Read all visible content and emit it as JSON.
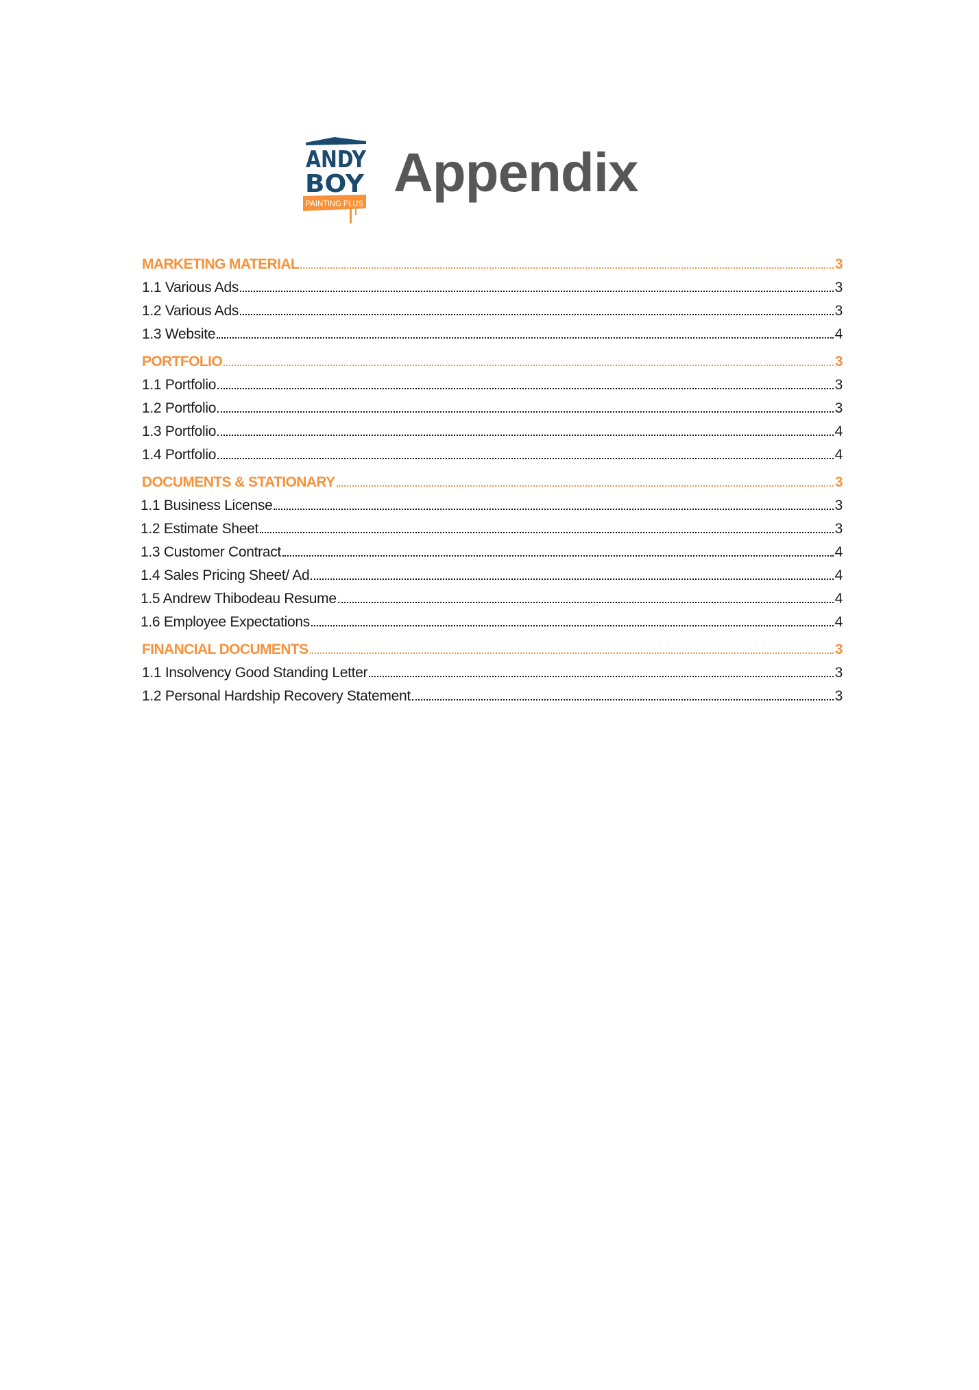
{
  "logo": {
    "line1": "ANDY",
    "line2": "BOY",
    "tagline": "PAINTING PLUS",
    "colors": {
      "blue": "#1a4a6e",
      "orange": "#f7923a"
    }
  },
  "title": "Appendix",
  "accent_color": "#f7923a",
  "toc": [
    {
      "heading": "MARKETING MATERIAL",
      "page": "3",
      "items": [
        {
          "label": "1.1 Various Ads",
          "page": "3"
        },
        {
          "label": "1.2 Various Ads",
          "page": "3"
        },
        {
          "label": "1.3 Website",
          "page": "4"
        }
      ]
    },
    {
      "heading": "PORTFOLIO",
      "page": "3",
      "items": [
        {
          "label": "1.1 Portfolio ",
          "page": "3"
        },
        {
          "label": "1.2 Portfolio",
          "page": "3"
        },
        {
          "label": "1.3 Portfolio",
          "page": "4"
        },
        {
          "label": "1.4 Portfolio",
          "page": "4"
        }
      ]
    },
    {
      "heading": "DOCUMENTS & STATIONARY",
      "page": "3",
      "items": [
        {
          "label": "1.1 Business License",
          "page": "3"
        },
        {
          "label": "1.2 Estimate Sheet",
          "page": "3"
        },
        {
          "label": "1.3 Customer Contract",
          "page": "4"
        },
        {
          "label": "1.4 Sales Pricing Sheet/ Ad",
          "page": "4"
        },
        {
          "label": "1.5 Andrew Thibodeau Resume",
          "page": "4"
        },
        {
          "label": "1.6 Employee Expectations",
          "page": "4"
        }
      ]
    },
    {
      "heading": "FINANCIAL DOCUMENTS",
      "page": "3",
      "items": [
        {
          "label": "1.1 Insolvency Good Standing Letter",
          "page": "3"
        },
        {
          "label": "1.2 Personal Hardship Recovery Statement",
          "page": "3"
        }
      ]
    }
  ]
}
